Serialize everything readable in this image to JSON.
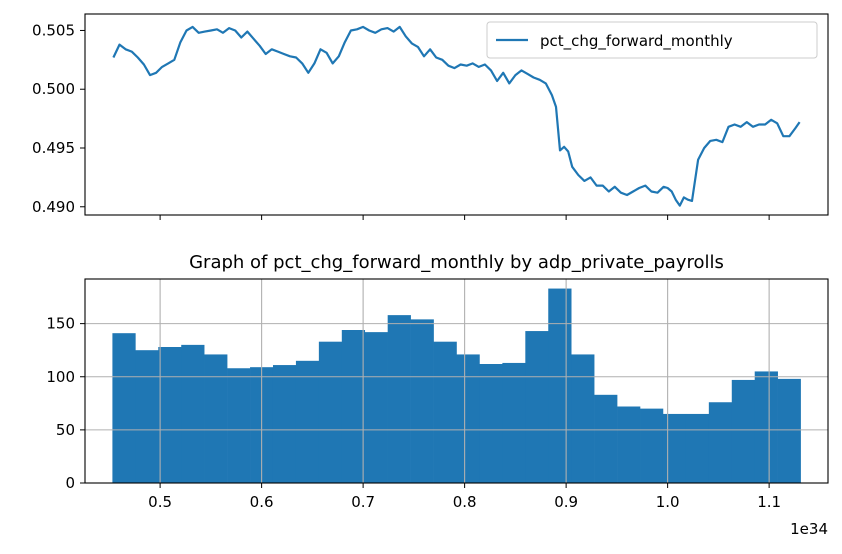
{
  "chart_data": [
    {
      "type": "line",
      "title": "",
      "xlabel": "",
      "ylabel": "",
      "ylim": [
        0.4893,
        0.5064
      ],
      "y_ticks": [
        "0.490",
        "0.495",
        "0.500",
        "0.505"
      ],
      "xlim": [
        0.426,
        1.158
      ],
      "x_ticks": [
        0.5,
        0.6,
        0.7,
        0.8,
        0.9,
        1.0,
        1.1
      ],
      "x_tick_labels_shown": false,
      "grid": false,
      "legend": {
        "placement": "top-right",
        "entries": [
          "pct_chg_forward_monthly"
        ]
      },
      "series": [
        {
          "name": "pct_chg_forward_monthly",
          "color": "#1f77b4",
          "x": [
            0.454,
            0.46,
            0.466,
            0.472,
            0.478,
            0.484,
            0.49,
            0.496,
            0.502,
            0.508,
            0.514,
            0.52,
            0.526,
            0.532,
            0.538,
            0.544,
            0.55,
            0.556,
            0.562,
            0.568,
            0.574,
            0.58,
            0.586,
            0.592,
            0.598,
            0.604,
            0.61,
            0.616,
            0.622,
            0.628,
            0.634,
            0.64,
            0.646,
            0.652,
            0.658,
            0.664,
            0.67,
            0.676,
            0.682,
            0.688,
            0.694,
            0.7,
            0.706,
            0.712,
            0.718,
            0.724,
            0.73,
            0.736,
            0.742,
            0.748,
            0.754,
            0.76,
            0.766,
            0.772,
            0.778,
            0.784,
            0.79,
            0.796,
            0.802,
            0.808,
            0.814,
            0.82,
            0.826,
            0.832,
            0.838,
            0.844,
            0.85,
            0.856,
            0.862,
            0.868,
            0.874,
            0.88,
            0.886,
            0.89,
            0.894,
            0.898,
            0.902,
            0.906,
            0.912,
            0.918,
            0.924,
            0.93,
            0.936,
            0.942,
            0.948,
            0.954,
            0.96,
            0.966,
            0.972,
            0.978,
            0.984,
            0.99,
            0.996,
            1.0,
            1.004,
            1.008,
            1.012,
            1.016,
            1.02,
            1.024,
            1.03,
            1.036,
            1.042,
            1.048,
            1.054,
            1.06,
            1.066,
            1.072,
            1.078,
            1.084,
            1.09,
            1.096,
            1.102,
            1.108,
            1.114,
            1.12,
            1.126,
            1.13
          ],
          "y": [
            0.5027,
            0.5038,
            0.5034,
            0.5032,
            0.5027,
            0.5021,
            0.5012,
            0.5014,
            0.5019,
            0.5022,
            0.5025,
            0.504,
            0.505,
            0.5053,
            0.5048,
            0.5049,
            0.505,
            0.5051,
            0.5048,
            0.5052,
            0.505,
            0.5044,
            0.5049,
            0.5043,
            0.5037,
            0.503,
            0.5034,
            0.5032,
            0.503,
            0.5028,
            0.5027,
            0.5022,
            0.5014,
            0.5022,
            0.5034,
            0.5031,
            0.5022,
            0.5028,
            0.504,
            0.505,
            0.5051,
            0.5053,
            0.505,
            0.5048,
            0.5051,
            0.5052,
            0.5049,
            0.5053,
            0.5045,
            0.5039,
            0.5036,
            0.5028,
            0.5034,
            0.5027,
            0.5025,
            0.502,
            0.5018,
            0.5021,
            0.502,
            0.5022,
            0.5019,
            0.5021,
            0.5016,
            0.5007,
            0.5014,
            0.5005,
            0.5012,
            0.5016,
            0.5013,
            0.501,
            0.5008,
            0.5005,
            0.4995,
            0.4985,
            0.4948,
            0.4951,
            0.4947,
            0.4934,
            0.4927,
            0.4922,
            0.4925,
            0.4918,
            0.4918,
            0.4913,
            0.4917,
            0.4912,
            0.491,
            0.4913,
            0.4916,
            0.4918,
            0.4913,
            0.4912,
            0.4917,
            0.4916,
            0.4913,
            0.4906,
            0.4901,
            0.4908,
            0.4906,
            0.4905,
            0.494,
            0.495,
            0.4956,
            0.4957,
            0.4955,
            0.4968,
            0.497,
            0.4968,
            0.4972,
            0.4968,
            0.497,
            0.497,
            0.4974,
            0.4971,
            0.496,
            0.496,
            0.4967,
            0.4972
          ]
        }
      ]
    },
    {
      "type": "bar",
      "title": "Graph of pct_chg_forward_monthly by adp_private_payrolls",
      "xlabel": "",
      "ylabel": "",
      "x_multiplier": "1e34",
      "xlim": [
        0.426,
        1.158
      ],
      "x_ticks": [
        0.5,
        0.6,
        0.7,
        0.8,
        0.9,
        1.0,
        1.1
      ],
      "x_tick_labels": [
        "0.5",
        "0.6",
        "0.7",
        "0.8",
        "0.9",
        "1.0",
        "1.1"
      ],
      "ylim": [
        0,
        192
      ],
      "y_ticks": [
        "0",
        "50",
        "100",
        "150"
      ],
      "grid": true,
      "color": "#1f77b4",
      "bin_start": 0.453,
      "bin_width": 0.0226,
      "values": [
        141,
        125,
        128,
        130,
        121,
        108,
        109,
        111,
        115,
        133,
        144,
        142,
        158,
        154,
        133,
        121,
        112,
        113,
        143,
        183,
        121,
        83,
        72,
        70,
        65,
        65,
        76,
        97,
        105,
        98
      ]
    }
  ]
}
